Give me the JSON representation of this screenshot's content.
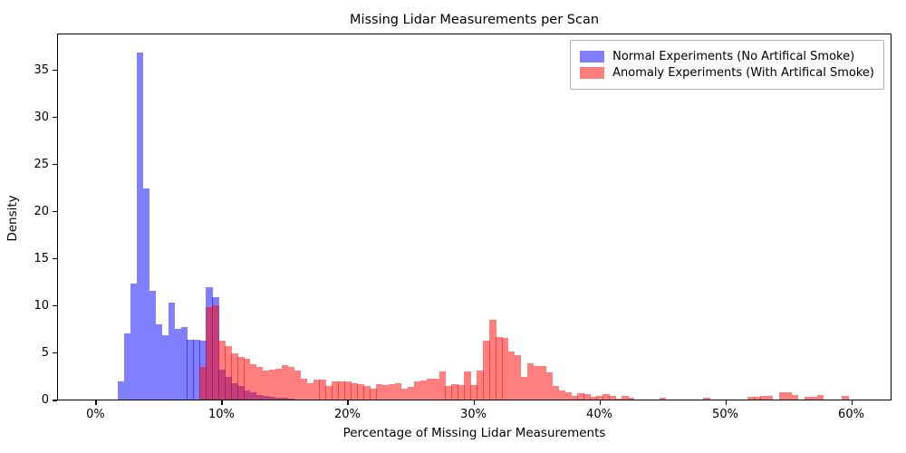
{
  "title": "Missing Lidar Measurements per Scan",
  "axes": {
    "xlabel": "Percentage of Missing Lidar Measurements",
    "ylabel": "Density",
    "x_tick_labels": [
      "0%",
      "10%",
      "20%",
      "30%",
      "40%",
      "50%",
      "60%"
    ],
    "x_tick_values": [
      0,
      10,
      20,
      30,
      40,
      50,
      60
    ],
    "y_tick_labels": [
      "0",
      "5",
      "10",
      "15",
      "20",
      "25",
      "30",
      "35"
    ],
    "y_tick_values": [
      0,
      5,
      10,
      15,
      20,
      25,
      30,
      35
    ]
  },
  "legend": {
    "entries": [
      {
        "label": "Normal Experiments (No Artifical Smoke)",
        "color": "#7f7fff"
      },
      {
        "label": "Anomaly Experiments (With Artifical Smoke)",
        "color": "#ff7f7f"
      }
    ]
  },
  "colors": {
    "normal_fill": "rgba(0,0,255,0.5)",
    "anomaly_fill": "rgba(255,0,0,0.5)",
    "overlap_seen": "#bf3f7f",
    "spine": "#000000"
  },
  "chart_data": {
    "type": "bar",
    "subtype": "overlaid-density-histograms",
    "title": "Missing Lidar Measurements per Scan",
    "xlabel": "Percentage of Missing Lidar Measurements",
    "ylabel": "Density",
    "grid": false,
    "legend_position": "upper right",
    "bin_width_percent": 0.5,
    "x_axis_range_percent": [
      -3.05,
      63.2
    ],
    "y_axis_range": [
      0,
      38.9
    ],
    "series": [
      {
        "name": "Normal Experiments (No Artifical Smoke)",
        "start_percent": 1.7,
        "densities": [
          1.9,
          7.0,
          12.3,
          36.8,
          22.4,
          11.5,
          8.0,
          6.8,
          10.3,
          7.5,
          7.7,
          6.3,
          6.3,
          6.2,
          11.9,
          10.9,
          3.2,
          2.4,
          1.7,
          1.4,
          1.0,
          0.75,
          0.5,
          0.35,
          0.25,
          0.2,
          0.15,
          0.1
        ]
      },
      {
        "name": "Anomaly Experiments (With Artifical Smoke)",
        "start_percent": 8.2,
        "densities": [
          3.5,
          9.8,
          10.0,
          6.2,
          5.7,
          4.9,
          4.5,
          4.3,
          3.7,
          3.5,
          3.1,
          3.15,
          3.3,
          3.65,
          3.45,
          3.05,
          2.2,
          1.75,
          2.15,
          2.1,
          1.45,
          1.9,
          1.9,
          1.9,
          1.75,
          1.6,
          1.45,
          1.15,
          1.6,
          1.55,
          1.6,
          1.75,
          1.2,
          1.35,
          1.9,
          2.0,
          2.2,
          2.2,
          3.0,
          1.45,
          1.6,
          1.55,
          3.0,
          1.5,
          3.1,
          6.2,
          8.5,
          6.6,
          6.5,
          5.1,
          4.7,
          2.4,
          3.8,
          3.6,
          3.6,
          2.9,
          1.45,
          1.0,
          0.8,
          0.4,
          0.65,
          0.55,
          0.25,
          0.4,
          0.6,
          0.4,
          0.1,
          0.4,
          0.16,
          0,
          0,
          0,
          0,
          0.2,
          0,
          0,
          0,
          0,
          0,
          0,
          0.23,
          0,
          0,
          0,
          0,
          0,
          0,
          0.26,
          0.3,
          0.42,
          0.42,
          0,
          0.75,
          0.77,
          0.5,
          0,
          0.32,
          0.32,
          0.45,
          0,
          0,
          0,
          0.4,
          0
        ]
      }
    ]
  }
}
